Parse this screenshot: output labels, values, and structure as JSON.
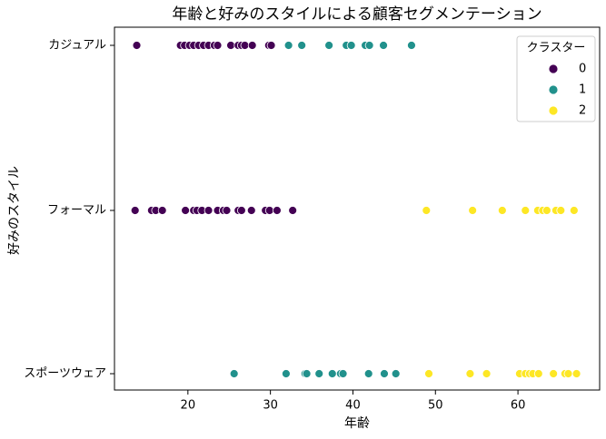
{
  "chart_data": {
    "type": "scatter",
    "title": "年齢と好みのスタイルによる顧客セグメンテーション",
    "x_label": "年齢",
    "y_label": "好みのスタイル",
    "ycategories": [
      "カジュアル",
      "フォーマル",
      "スポーツウェア"
    ],
    "xlim": [
      11.1,
      69.9
    ],
    "xticks": [
      20,
      30,
      40,
      50,
      60
    ],
    "legend_title": "クラスター",
    "legend_position": "upper right",
    "series": [
      {
        "name": "0",
        "color": "#440154",
        "x": [
          13.8,
          19.1,
          19.6,
          20.2,
          20.7,
          21.3,
          21.9,
          22.5,
          23.2,
          23.6,
          25.2,
          26.1,
          26.5,
          26.9,
          27.8,
          29.8,
          30.1,
          13.6,
          15.6,
          16.1,
          16.9,
          19.7,
          20.7,
          21.1,
          21.7,
          22.5,
          23.6,
          24.3,
          24.7,
          26.1,
          26.5,
          27.7,
          29.4,
          29.9,
          30.8,
          32.7
        ],
        "y": [
          "カジュアル",
          "カジュアル",
          "カジュアル",
          "カジュアル",
          "カジュアル",
          "カジュアル",
          "カジュアル",
          "カジュアル",
          "カジュアル",
          "カジュアル",
          "カジュアル",
          "カジュアル",
          "カジュアル",
          "カジュアル",
          "カジュアル",
          "カジュアル",
          "カジュアル",
          "フォーマル",
          "フォーマル",
          "フォーマル",
          "フォーマル",
          "フォーマル",
          "フォーマル",
          "フォーマル",
          "フォーマル",
          "フォーマル",
          "フォーマル",
          "フォーマル",
          "フォーマル",
          "フォーマル",
          "フォーマル",
          "フォーマル",
          "フォーマル",
          "フォーマル",
          "フォーマル",
          "フォーマル"
        ]
      },
      {
        "name": "1",
        "color": "#21918c",
        "x": [
          32.2,
          33.8,
          37.1,
          39.2,
          39.8,
          41.5,
          42.0,
          43.7,
          47.1,
          25.6,
          31.9,
          34.2,
          34.4,
          35.9,
          37.5,
          38.5,
          38.8,
          41.9,
          43.8,
          45.2
        ],
        "y": [
          "カジュアル",
          "カジュアル",
          "カジュアル",
          "カジュアル",
          "カジュアル",
          "カジュアル",
          "カジュアル",
          "カジュアル",
          "カジュアル",
          "スポーツウェア",
          "スポーツウェア",
          "スポーツウェア",
          "スポーツウェア",
          "スポーツウェア",
          "スポーツウェア",
          "スポーツウェア",
          "スポーツウェア",
          "スポーツウェア",
          "スポーツウェア",
          "スポーツウェア"
        ]
      },
      {
        "name": "2",
        "color": "#fde725",
        "x": [
          48.9,
          54.5,
          58.1,
          60.9,
          62.4,
          63.0,
          63.5,
          64.6,
          65.2,
          66.8,
          49.2,
          54.2,
          56.2,
          60.2,
          60.9,
          61.4,
          61.8,
          62.5,
          64.3,
          65.7,
          66.1,
          67.1
        ],
        "y": [
          "フォーマル",
          "フォーマル",
          "フォーマル",
          "フォーマル",
          "フォーマル",
          "フォーマル",
          "フォーマル",
          "フォーマル",
          "フォーマル",
          "フォーマル",
          "スポーツウェア",
          "スポーツウェア",
          "スポーツウェア",
          "スポーツウェア",
          "スポーツウェア",
          "スポーツウェア",
          "スポーツウェア",
          "スポーツウェア",
          "スポーツウェア",
          "スポーツウェア",
          "スポーツウェア",
          "スポーツウェア"
        ]
      }
    ]
  }
}
